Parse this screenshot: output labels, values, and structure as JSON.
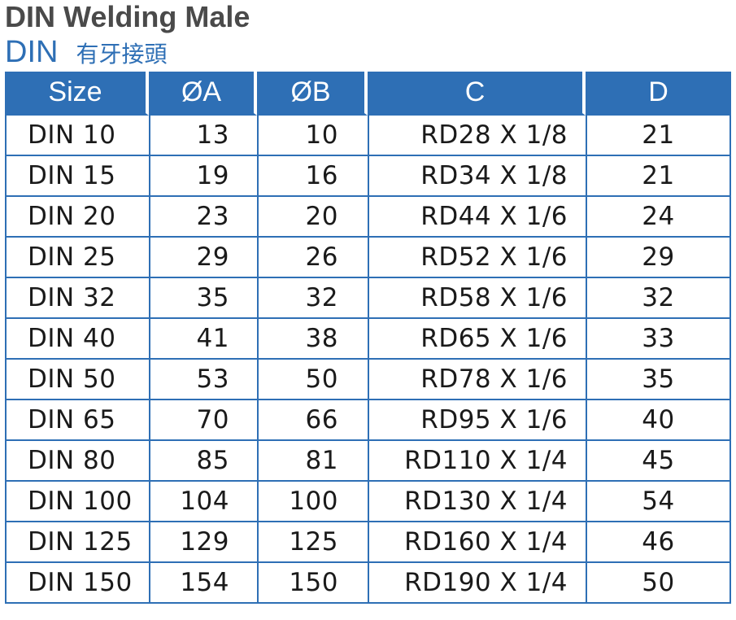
{
  "title": "DIN Welding Male",
  "subtitle": {
    "en": "DIN",
    "zh": "有牙接頭"
  },
  "colors": {
    "header_bg": "#2e6fb5",
    "title_text": "#4a4a4a",
    "subtitle_text": "#2e6fb5"
  },
  "table": {
    "headers": [
      "Size",
      "ØA",
      "ØB",
      "C",
      "D"
    ],
    "rows": [
      [
        "DIN 10",
        "13",
        "10",
        "RD28 X 1/8",
        "21"
      ],
      [
        "DIN 15",
        "19",
        "16",
        "RD34 X 1/8",
        "21"
      ],
      [
        "DIN 20",
        "23",
        "20",
        "RD44 X 1/6",
        "24"
      ],
      [
        "DIN 25",
        "29",
        "26",
        "RD52 X 1/6",
        "29"
      ],
      [
        "DIN 32",
        "35",
        "32",
        "RD58 X 1/6",
        "32"
      ],
      [
        "DIN 40",
        "41",
        "38",
        "RD65 X 1/6",
        "33"
      ],
      [
        "DIN 50",
        "53",
        "50",
        "RD78 X 1/6",
        "35"
      ],
      [
        "DIN 65",
        "70",
        "66",
        "RD95 X 1/6",
        "40"
      ],
      [
        "DIN 80",
        "85",
        "81",
        "RD110 X 1/4",
        "45"
      ],
      [
        "DIN 100",
        "104",
        "100",
        "RD130 X 1/4",
        "54"
      ],
      [
        "DIN 125",
        "129",
        "125",
        "RD160 X 1/4",
        "46"
      ],
      [
        "DIN 150",
        "154",
        "150",
        "RD190 X 1/4",
        "50"
      ]
    ]
  }
}
